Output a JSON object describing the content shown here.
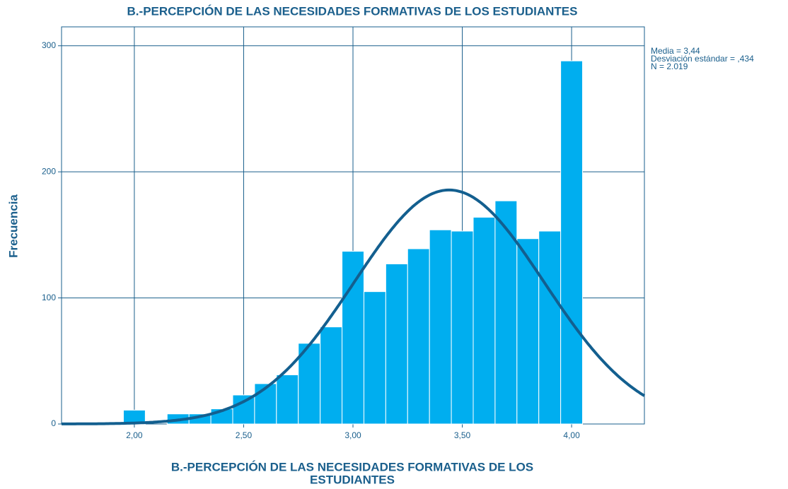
{
  "chart_data": {
    "type": "histogram",
    "title": "B.-PERCEPCIÓN DE LAS NECESIDADES FORMATIVAS DE LOS ESTUDIANTES",
    "xlabel": [
      "B.-PERCEPCIÓN DE LAS NECESIDADES FORMATIVAS DE LOS",
      "ESTUDIANTES"
    ],
    "ylabel": "Frecuencia",
    "bins": [
      1.95,
      2.05,
      2.15,
      2.25,
      2.35,
      2.45,
      2.55,
      2.65,
      2.75,
      2.85,
      2.95,
      3.05,
      3.15,
      3.25,
      3.35,
      3.45,
      3.55,
      3.65,
      3.75,
      3.85,
      3.95,
      4.05
    ],
    "values": [
      11,
      0,
      8,
      8,
      12,
      23,
      32,
      39,
      64,
      77,
      137,
      105,
      127,
      139,
      154,
      153,
      164,
      177,
      147,
      153,
      288
    ],
    "color": "#00aeef",
    "curve_color": "#135f8f",
    "xlim": [
      1.667,
      4.333
    ],
    "ylim": [
      0,
      315
    ],
    "xticks": [
      {
        "value": 2.0,
        "label": "2,00"
      },
      {
        "value": 2.5,
        "label": "2,50"
      },
      {
        "value": 3.0,
        "label": "3,00"
      },
      {
        "value": 3.5,
        "label": "3,50"
      },
      {
        "value": 4.0,
        "label": "4,00"
      }
    ],
    "yticks": [
      0,
      100,
      200,
      300
    ],
    "grid": true,
    "stats": [
      {
        "label": "Media = 3,44",
        "value": 3.44
      },
      {
        "label": "Desviación estándar = ,434",
        "value": 0.434
      },
      {
        "label": "N = 2.019",
        "value": 2019
      }
    ]
  }
}
